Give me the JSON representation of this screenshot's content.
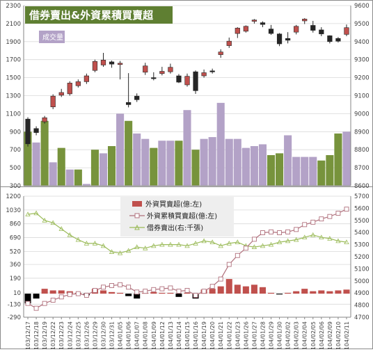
{
  "title": "借券賣出&外資累積買賣超",
  "volume_label": "成交量",
  "colors": {
    "up_candle": "#c0504d",
    "down_candle": "#262626",
    "bar_green": "#77933c",
    "bar_purple": "#b3a2c7",
    "net_bar": "#c0504d",
    "cum_line": "#b0707c",
    "short_line": "#9bbb59",
    "title_bg": "#5f7f32",
    "title_text": "#ffffff"
  },
  "chart_data": [
    {
      "type": "candlestick",
      "title": "借券賣出&外資累積買賣超",
      "categories": [
        "103/12/17",
        "103/12/18",
        "103/12/19",
        "103/12/22",
        "103/12/23",
        "103/12/24",
        "103/12/25",
        "103/12/26",
        "103/12/29",
        "103/12/30",
        "103/12/31",
        "104/01/05",
        "104/01/06",
        "104/01/07",
        "104/01/08",
        "104/01/09",
        "104/01/12",
        "104/01/13",
        "104/01/14",
        "104/01/15",
        "104/01/16",
        "104/01/19",
        "104/01/20",
        "104/01/21",
        "104/01/22",
        "104/01/23",
        "104/01/26",
        "104/01/27",
        "104/01/28",
        "104/01/29",
        "104/01/30",
        "104/02/02",
        "104/02/03",
        "104/02/04",
        "104/02/05",
        "104/02/06",
        "104/02/09",
        "104/02/10",
        "104/02/11"
      ],
      "open": [
        1040,
        935,
        1010,
        1175,
        1305,
        1320,
        1410,
        1455,
        1580,
        1640,
        1675,
        1645,
        1225,
        1295,
        1560,
        1500,
        1545,
        1565,
        1520,
        1420,
        1565,
        1520,
        1575,
        1755,
        1855,
        1990,
        2015,
        2125,
        2110,
        2040,
        1985,
        1935,
        2005,
        2130,
        2080,
        2030,
        1965,
        1935,
        1980
      ],
      "close": [
        765,
        890,
        1055,
        1295,
        1335,
        1440,
        1455,
        1520,
        1680,
        1695,
        1650,
        1660,
        1200,
        1255,
        1630,
        1490,
        1570,
        1615,
        1450,
        1515,
        1355,
        1555,
        1565,
        1785,
        1905,
        2050,
        2070,
        2140,
        2090,
        1990,
        1875,
        1915,
        2070,
        2150,
        2025,
        1985,
        1900,
        1905,
        2055
      ],
      "high": [
        1060,
        960,
        1075,
        1315,
        1375,
        1460,
        1480,
        1545,
        1700,
        1775,
        1690,
        1685,
        1550,
        1325,
        1665,
        1560,
        1620,
        1655,
        1540,
        1545,
        1580,
        1590,
        1600,
        1815,
        1945,
        2060,
        2080,
        2150,
        2125,
        2085,
        1995,
        2005,
        2085,
        2160,
        2130,
        2060,
        1970,
        1950,
        2090
      ],
      "low": [
        735,
        860,
        990,
        1150,
        1285,
        1300,
        1390,
        1430,
        1560,
        1620,
        1610,
        1480,
        1170,
        1230,
        1530,
        1470,
        1525,
        1545,
        1440,
        1400,
        1320,
        1500,
        1545,
        1720,
        1830,
        1940,
        2000,
        2100,
        2060,
        1975,
        1850,
        1880,
        1980,
        2095,
        2000,
        1960,
        1880,
        1890,
        1960
      ],
      "volume": [
        8900,
        8840,
        8960,
        8730,
        8810,
        8690,
        8690,
        8610,
        8800,
        8780,
        8820,
        9000,
        8960,
        8890,
        8860,
        8810,
        8850,
        8850,
        8850,
        9020,
        8800,
        8860,
        8870,
        9060,
        8860,
        8860,
        8810,
        8820,
        8830,
        8770,
        8780,
        8880,
        8760,
        8760,
        8760,
        8740,
        8770,
        8890,
        8900
      ],
      "volume_color": [
        "green",
        "purple",
        "green",
        "purple",
        "green",
        "purple",
        "green",
        "purple",
        "green",
        "purple",
        "green",
        "purple",
        "green",
        "purple",
        "purple",
        "green",
        "purple",
        "purple",
        "green",
        "purple",
        "green",
        "purple",
        "purple",
        "purple",
        "purple",
        "purple",
        "purple",
        "purple",
        "purple",
        "green",
        "green",
        "purple",
        "purple",
        "purple",
        "purple",
        "green",
        "green",
        "green",
        "purple"
      ],
      "y_left_ticks": [
        300,
        500,
        700,
        900,
        1100,
        1300,
        1500,
        1700,
        1900,
        2100,
        2300
      ],
      "y_right_ticks": [
        8600,
        8700,
        8800,
        8900,
        9000,
        9100,
        9200,
        9300,
        9400,
        9500,
        9600
      ],
      "ylim_left": [
        300,
        2300
      ],
      "ylim_right": [
        8600,
        9600
      ]
    },
    {
      "type": "bar+line",
      "categories_ref": "same as panel 1",
      "series": [
        {
          "name": "外資買賣超(億:左)",
          "type": "bar",
          "axis": "left",
          "values": [
            -120,
            -60,
            60,
            40,
            40,
            30,
            10,
            -20,
            60,
            40,
            20,
            10,
            -30,
            -60,
            10,
            20,
            10,
            10,
            -40,
            10,
            -60,
            50,
            60,
            90,
            180,
            110,
            90,
            110,
            80,
            10,
            -10,
            10,
            30,
            60,
            30,
            40,
            30,
            40,
            50
          ]
        },
        {
          "name": "外資累積買賣超(億:左)",
          "type": "line",
          "axis": "left",
          "values": [
            -120,
            -180,
            -120,
            -80,
            -40,
            -10,
            0,
            -20,
            40,
            80,
            100,
            110,
            80,
            20,
            30,
            50,
            60,
            70,
            30,
            40,
            -20,
            30,
            90,
            180,
            360,
            470,
            560,
            670,
            750,
            760,
            750,
            760,
            790,
            850,
            880,
            920,
            950,
            990,
            1040
          ]
        },
        {
          "name": "借券賣出(右:千張)",
          "type": "line",
          "axis": "right",
          "values": [
            5550,
            5560,
            5500,
            5480,
            5430,
            5380,
            5340,
            5310,
            5310,
            5290,
            5240,
            5230,
            5250,
            5280,
            5270,
            5290,
            5300,
            5300,
            5300,
            5290,
            5310,
            5330,
            5320,
            5290,
            5310,
            5320,
            5290,
            5280,
            5290,
            5300,
            5320,
            5330,
            5340,
            5360,
            5380,
            5360,
            5350,
            5330,
            5320
          ]
        }
      ],
      "y_left_ticks": [
        -290,
        -130,
        10,
        190,
        360,
        520,
        690,
        860,
        1030,
        1200
      ],
      "y_right_ticks": [
        4700,
        4800,
        4900,
        5000,
        5100,
        5200,
        5300,
        5400,
        5500,
        5600,
        5700
      ],
      "ylim_left": [
        -290,
        1200
      ],
      "ylim_right": [
        4700,
        5700
      ]
    }
  ]
}
